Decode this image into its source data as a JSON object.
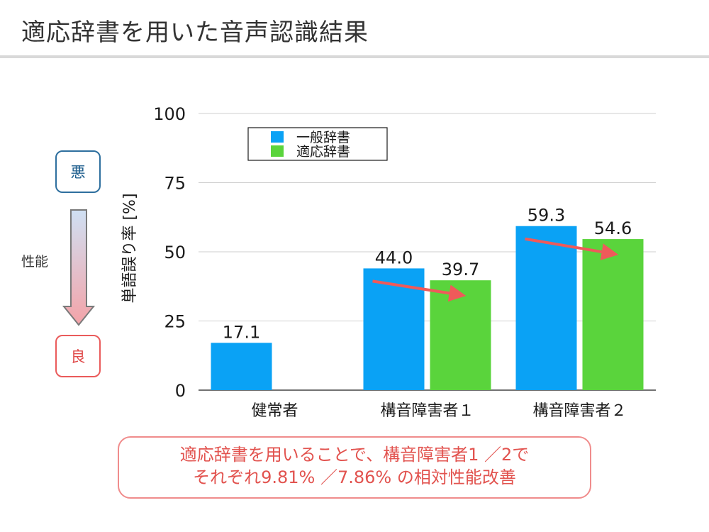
{
  "title": "適応辞書を用いた音声認識結果",
  "side": {
    "bad_label": "悪",
    "good_label": "良",
    "performance_label": "性能"
  },
  "callout": {
    "line1": "適応辞書を用いることで、構音障害者1 ／2で",
    "line2": "それぞれ9.81% ／7.86% の相対性能改善"
  },
  "colors": {
    "general": "#0aa2f5",
    "adapted": "#5ad43c",
    "trend_arrow": "#ef5a5a",
    "callout": "#e2534f"
  },
  "chart_data": {
    "type": "bar",
    "categories": [
      "健常者",
      "構音障害者１",
      "構音障害者２"
    ],
    "series": [
      {
        "name": "一般辞書",
        "values": [
          17.1,
          44.0,
          59.3
        ]
      },
      {
        "name": "適応辞書",
        "values": [
          null,
          39.7,
          54.6
        ]
      }
    ],
    "data_labels": [
      [
        "17.1",
        "44.0",
        "59.3"
      ],
      [
        "",
        "39.7",
        "54.6"
      ]
    ],
    "ylabel": "単語誤り率 [%]",
    "xlabel": "",
    "ylim": [
      0,
      100
    ],
    "yticks": [
      0,
      25,
      50,
      75,
      100
    ],
    "grid": true,
    "legend": "top-left",
    "annotations": [
      "trend arrows from 一般辞書 to 適応辞書 for 構音障害者１ and 構音障害者２"
    ]
  }
}
